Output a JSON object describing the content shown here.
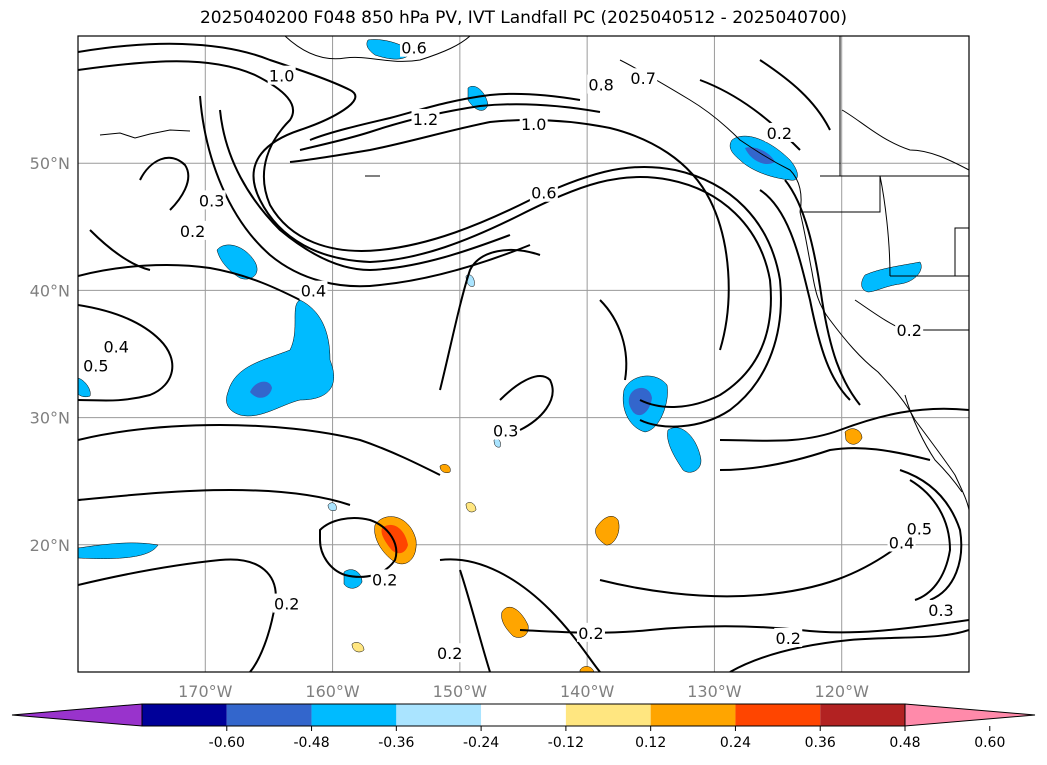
{
  "title": "2025040200 F048 850 hPa PV, IVT Landfall PC (2025040512 - 2025040700)",
  "map": {
    "lon_range": [
      -180,
      -110
    ],
    "lat_range": [
      10,
      60
    ],
    "lat_ticks": [
      {
        "value": 50,
        "label": "50°N"
      },
      {
        "value": 40,
        "label": "40°N"
      },
      {
        "value": 30,
        "label": "30°N"
      },
      {
        "value": 20,
        "label": "20°N"
      }
    ],
    "lon_ticks": [
      {
        "value": -170,
        "label": "170°W"
      },
      {
        "value": -160,
        "label": "160°W"
      },
      {
        "value": -150,
        "label": "150°W"
      },
      {
        "value": -140,
        "label": "140°W"
      },
      {
        "value": -130,
        "label": "130°W"
      },
      {
        "value": -120,
        "label": "120°W"
      }
    ],
    "gridlines": true
  },
  "contour_labels": [
    {
      "text": "1.0",
      "lon": -164.0,
      "lat": 56.8
    },
    {
      "text": "1.2",
      "lon": -152.7,
      "lat": 53.4
    },
    {
      "text": "1.0",
      "lon": -144.2,
      "lat": 53.0
    },
    {
      "text": "0.8",
      "lon": -138.9,
      "lat": 56.1
    },
    {
      "text": "0.7",
      "lon": -135.6,
      "lat": 56.6
    },
    {
      "text": "0.6",
      "lon": -143.4,
      "lat": 47.6
    },
    {
      "text": "0.3",
      "lon": -169.5,
      "lat": 47.0
    },
    {
      "text": "0.2",
      "lon": -171.0,
      "lat": 44.6
    },
    {
      "text": "0.4",
      "lon": -161.5,
      "lat": 39.9
    },
    {
      "text": "0.4",
      "lon": -177.0,
      "lat": 35.5
    },
    {
      "text": "0.5",
      "lon": -178.6,
      "lat": 34.0
    },
    {
      "text": "0.3",
      "lon": -146.4,
      "lat": 28.9
    },
    {
      "text": "0.2",
      "lon": -155.9,
      "lat": 17.2
    },
    {
      "text": "0.2",
      "lon": -163.6,
      "lat": 15.3
    },
    {
      "text": "0.2",
      "lon": -139.7,
      "lat": 13.0
    },
    {
      "text": "0.2",
      "lon": -150.8,
      "lat": 11.4
    },
    {
      "text": "0.2",
      "lon": -124.2,
      "lat": 12.6
    },
    {
      "text": "0.2",
      "lon": -124.9,
      "lat": 52.3
    },
    {
      "text": "0.2",
      "lon": -114.7,
      "lat": 36.8
    },
    {
      "text": "0.4",
      "lon": -115.3,
      "lat": 20.1
    },
    {
      "text": "0.5",
      "lon": -113.9,
      "lat": 21.2
    },
    {
      "text": "0.3",
      "lon": -112.2,
      "lat": 14.8
    },
    {
      "text": "0.6",
      "lon": -153.6,
      "lat": 59.0
    }
  ],
  "colorbar": {
    "ticks": [
      "-0.60",
      "-0.48",
      "-0.36",
      "-0.24",
      "-0.12",
      "0.12",
      "0.24",
      "0.36",
      "0.48",
      "0.60"
    ],
    "bins": [
      {
        "color": "#9933cc"
      },
      {
        "color": "#000099"
      },
      {
        "color": "#3366cc"
      },
      {
        "color": "#00bbff"
      },
      {
        "color": "#aae4ff"
      },
      {
        "color": "#ffffff"
      },
      {
        "color": "#ffe680"
      },
      {
        "color": "#ffa500"
      },
      {
        "color": "#ff4500"
      },
      {
        "color": "#b22222"
      },
      {
        "color": "#ff8aaa"
      }
    ]
  }
}
